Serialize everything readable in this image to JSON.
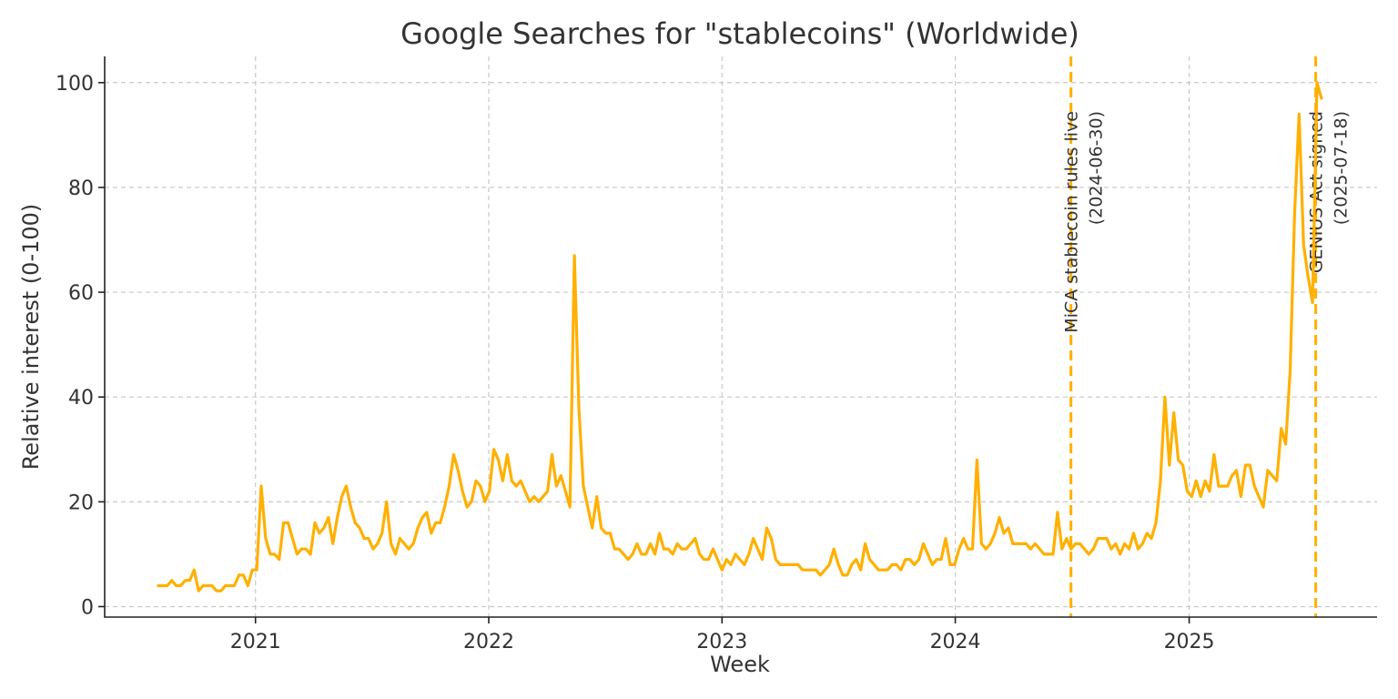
{
  "chart_data": {
    "type": "line",
    "title": "Google Searches for \"stablecoins\" (Worldwide)",
    "xlabel": "Week",
    "ylabel": "Relative interest (0-100)",
    "xlim": [
      "2020-05-10",
      "2025-10-22"
    ],
    "ylim": [
      -2,
      105
    ],
    "x_ticks": [
      {
        "value": "2021-01-01",
        "label": "2021"
      },
      {
        "value": "2022-01-01",
        "label": "2022"
      },
      {
        "value": "2023-01-01",
        "label": "2023"
      },
      {
        "value": "2024-01-01",
        "label": "2024"
      },
      {
        "value": "2025-01-01",
        "label": "2025"
      }
    ],
    "y_ticks": [
      0,
      20,
      40,
      60,
      80,
      100
    ],
    "grid": true,
    "color": "#FFB000",
    "series": [
      {
        "start": "2020-08-02",
        "interval_days": 7,
        "values": [
          4,
          4,
          4,
          5,
          4,
          4,
          5,
          5,
          7,
          3,
          4,
          4,
          4,
          3,
          3,
          4,
          4,
          4,
          6,
          6,
          4,
          7,
          7,
          23,
          13,
          10,
          10,
          9,
          16,
          16,
          13,
          10,
          11,
          11,
          10,
          16,
          14,
          15,
          17,
          12,
          17,
          21,
          23,
          19,
          16,
          15,
          13,
          13,
          11,
          12,
          14,
          20,
          12,
          10,
          13,
          12,
          11,
          12,
          15,
          17,
          18,
          14,
          16,
          16,
          19,
          23,
          29,
          26,
          22,
          19,
          20,
          24,
          23,
          20,
          22,
          30,
          28,
          24,
          29,
          24,
          23,
          24,
          22,
          20,
          21,
          20,
          21,
          22,
          29,
          23,
          25,
          22,
          19,
          67,
          38,
          23,
          19,
          15,
          21,
          15,
          14,
          14,
          11,
          11,
          10,
          9,
          10,
          12,
          10,
          10,
          12,
          10,
          14,
          11,
          11,
          10,
          12,
          11,
          11,
          12,
          13,
          10,
          9,
          9,
          11,
          9,
          7,
          9,
          8,
          10,
          9,
          8,
          10,
          13,
          11,
          9,
          15,
          13,
          9,
          8,
          8,
          8,
          8,
          8,
          7,
          7,
          7,
          7,
          6,
          7,
          8,
          11,
          8,
          6,
          6,
          8,
          9,
          7,
          12,
          9,
          8,
          7,
          7,
          7,
          8,
          8,
          7,
          9,
          9,
          8,
          9,
          12,
          10,
          8,
          9,
          9,
          13,
          8,
          8,
          11,
          13,
          11,
          11,
          28,
          12,
          11,
          12,
          14,
          17,
          14,
          15,
          12,
          12,
          12,
          12,
          11,
          12,
          11,
          10,
          10,
          10,
          18,
          11,
          13,
          11,
          12,
          12,
          11,
          10,
          11,
          13,
          13,
          13,
          11,
          12,
          10,
          12,
          11,
          14,
          11,
          12,
          14,
          13,
          16,
          24,
          40,
          27,
          37,
          28,
          27,
          22,
          21,
          24,
          21,
          24,
          22,
          29,
          23,
          23,
          23,
          25,
          26,
          21,
          27,
          27,
          23,
          21,
          19,
          26,
          25,
          24,
          34,
          31,
          45,
          75,
          94,
          69,
          63,
          58,
          100,
          97
        ]
      }
    ],
    "annotations": [
      {
        "date": "2024-06-30",
        "lines": [
          "MiCA stablecoin rules live",
          "(2024-06-30)"
        ]
      },
      {
        "date": "2025-07-18",
        "lines": [
          "GENIUS Act signed",
          "(2025-07-18)"
        ]
      }
    ]
  }
}
